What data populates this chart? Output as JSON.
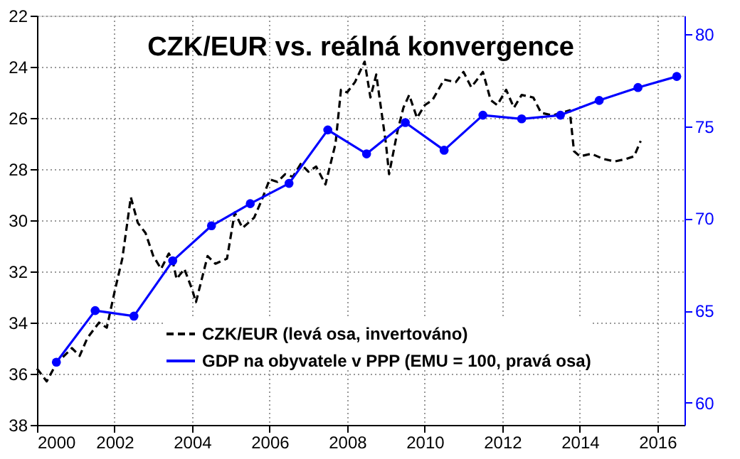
{
  "chart_data": {
    "type": "line",
    "title": "CZK/EUR vs. reálná konvergence",
    "xlim": [
      2000,
      2016.7
    ],
    "xticks": [
      2000,
      2002,
      2004,
      2006,
      2008,
      2010,
      2012,
      2014,
      2016
    ],
    "ylim": [
      38,
      22
    ],
    "yticks": [
      22,
      24,
      26,
      28,
      30,
      32,
      34,
      36,
      38
    ],
    "y2lim": [
      58.8,
      81.0
    ],
    "y2ticks": [
      60,
      65,
      70,
      75,
      80
    ],
    "grid": true,
    "legend": "bottom",
    "series": [
      {
        "name": "CZK/EUR (levá osa, invertováno)",
        "color": "#000000",
        "line_style": "dashed",
        "marker": "none",
        "x": [
          2000.0,
          2000.25,
          2000.5,
          2000.9,
          2001.1,
          2001.3,
          2001.6,
          2001.8,
          2002.0,
          2002.2,
          2002.42,
          2002.6,
          2002.8,
          2003.0,
          2003.2,
          2003.4,
          2003.5,
          2003.6,
          2003.8,
          2004.0,
          2004.1,
          2004.2,
          2004.4,
          2004.6,
          2004.9,
          2005.1,
          2005.3,
          2005.6,
          2005.8,
          2006.0,
          2006.2,
          2006.4,
          2006.6,
          2006.8,
          2007.0,
          2007.2,
          2007.44,
          2007.7,
          2007.84,
          2008.0,
          2008.2,
          2008.45,
          2008.6,
          2008.75,
          2009.0,
          2009.08,
          2009.3,
          2009.45,
          2009.6,
          2009.8,
          2010.0,
          2010.2,
          2010.5,
          2010.8,
          2011.0,
          2011.2,
          2011.5,
          2011.7,
          2011.87,
          2012.1,
          2012.3,
          2012.5,
          2012.8,
          2013.0,
          2013.3,
          2013.74,
          2013.85,
          2014.0,
          2014.3,
          2014.6,
          2014.9,
          2015.2,
          2015.4,
          2015.57
        ],
        "values": [
          35.8,
          36.3,
          35.6,
          35.0,
          35.3,
          34.6,
          34.0,
          34.2,
          32.8,
          31.5,
          29.1,
          30.1,
          30.5,
          31.4,
          31.9,
          31.3,
          31.6,
          32.3,
          31.9,
          32.7,
          33.2,
          32.6,
          31.4,
          31.7,
          31.5,
          29.7,
          30.3,
          29.9,
          29.2,
          28.4,
          28.5,
          28.2,
          28.3,
          27.8,
          28.1,
          27.9,
          28.6,
          27.0,
          24.9,
          25.0,
          24.6,
          23.8,
          25.2,
          24.3,
          27.0,
          28.2,
          26.5,
          25.6,
          25.1,
          26.0,
          25.5,
          25.3,
          24.5,
          24.6,
          24.2,
          24.8,
          24.2,
          25.3,
          25.5,
          24.9,
          25.6,
          25.1,
          25.2,
          25.8,
          25.9,
          25.7,
          27.3,
          27.5,
          27.4,
          27.6,
          27.7,
          27.6,
          27.5,
          26.9
        ]
      },
      {
        "name": "GDP na obyvatele v PPP (EMU = 100, pravá osa)",
        "color": "#0000ff",
        "line_style": "solid",
        "marker": "circle",
        "axis": "y2",
        "x": [
          2000.5,
          2001.5,
          2002.5,
          2003.5,
          2004.5,
          2005.5,
          2006.5,
          2007.5,
          2008.5,
          2009.5,
          2010.5,
          2011.5,
          2012.5,
          2013.5,
          2014.5,
          2015.5,
          2016.5
        ],
        "values": [
          62.2,
          65.0,
          64.7,
          67.7,
          69.6,
          70.8,
          71.9,
          74.8,
          73.5,
          75.2,
          73.7,
          75.6,
          75.4,
          75.6,
          76.4,
          77.1,
          77.7
        ]
      }
    ]
  }
}
